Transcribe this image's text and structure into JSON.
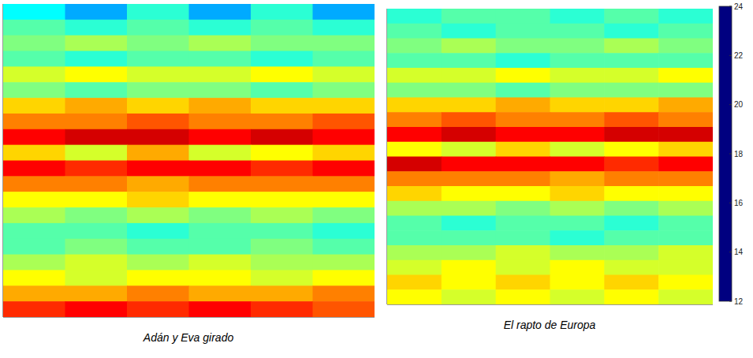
{
  "chart_data": [
    {
      "type": "heatmap",
      "title": "Adán y Eva girado",
      "xlim": [
        0,
        6
      ],
      "ylim": [
        0,
        20
      ],
      "tick_labels": false,
      "cells": [
        [
          16.5,
          15.5,
          17,
          15.5,
          17,
          15.5
        ],
        [
          17.5,
          17,
          17.5,
          17,
          17.5,
          17
        ],
        [
          18,
          18.5,
          18,
          18.5,
          18,
          18
        ],
        [
          17.5,
          17,
          17.5,
          17.5,
          17,
          17.5
        ],
        [
          19,
          19.5,
          19,
          19,
          19.5,
          19
        ],
        [
          18,
          17.5,
          18,
          18,
          17.5,
          18
        ],
        [
          20,
          20.5,
          20,
          20.5,
          20,
          20
        ],
        [
          21,
          21,
          21.5,
          21,
          21,
          21.5
        ],
        [
          22.5,
          23,
          23,
          22.5,
          23,
          22.5
        ],
        [
          20,
          19,
          20.5,
          19,
          19.5,
          20
        ],
        [
          22.5,
          22,
          22.5,
          22.5,
          22,
          22.5
        ],
        [
          21,
          21,
          20.5,
          21,
          21,
          21
        ],
        [
          19.5,
          19.5,
          20,
          19.5,
          19.5,
          19.5
        ],
        [
          18.5,
          18,
          18.5,
          18,
          18.5,
          18
        ],
        [
          17.5,
          17.5,
          17,
          17.5,
          17.5,
          17
        ],
        [
          17.5,
          18,
          17.5,
          17.5,
          18,
          17.5
        ],
        [
          18.5,
          19,
          18.5,
          19,
          18.5,
          18.5
        ],
        [
          19.5,
          19,
          19.5,
          19.5,
          19,
          19.5
        ],
        [
          20.5,
          20.5,
          21,
          20.5,
          20.5,
          21
        ],
        [
          22,
          22.5,
          22,
          22.5,
          22,
          21.5
        ]
      ]
    },
    {
      "type": "heatmap",
      "title": "El rapto de Europa",
      "xlim": [
        0,
        6
      ],
      "ylim": [
        0,
        20
      ],
      "tick_labels": false,
      "cells": [
        [
          17,
          17.5,
          17.5,
          17,
          17.5,
          17
        ],
        [
          17.5,
          17,
          17.5,
          17.5,
          17,
          17.5
        ],
        [
          18,
          18.5,
          18,
          18,
          18.5,
          18
        ],
        [
          17.5,
          17.5,
          17,
          17.5,
          17.5,
          17.5
        ],
        [
          19,
          19,
          19.5,
          19,
          19,
          19.5
        ],
        [
          18,
          18,
          17.5,
          18,
          18,
          18
        ],
        [
          20,
          20,
          20.5,
          20,
          20,
          20.5
        ],
        [
          21,
          21.5,
          21,
          21,
          21.5,
          21
        ],
        [
          22.5,
          23,
          22.5,
          22.5,
          23,
          23
        ],
        [
          19.5,
          19,
          20,
          19,
          19.5,
          20
        ],
        [
          23,
          22.5,
          22.5,
          22.5,
          22,
          22.5
        ],
        [
          21,
          21,
          21,
          20.5,
          21,
          21
        ],
        [
          20,
          19.5,
          19.5,
          20,
          19.5,
          19.5
        ],
        [
          18.5,
          18.5,
          18,
          18.5,
          18,
          18.5
        ],
        [
          17.5,
          17,
          17.5,
          17.5,
          17,
          17.5
        ],
        [
          17.5,
          17.5,
          17.5,
          17,
          17.5,
          17.5
        ],
        [
          18.5,
          18.5,
          19,
          18.5,
          18.5,
          19
        ],
        [
          19,
          19.5,
          19,
          19.5,
          19,
          19
        ],
        [
          20,
          19.5,
          20,
          19.5,
          20,
          19.5
        ],
        [
          19.5,
          19,
          19.5,
          19,
          19.5,
          19
        ]
      ]
    }
  ],
  "colorbar": {
    "range": [
      12,
      24
    ],
    "ticks": [
      12,
      14,
      16,
      18,
      20,
      22,
      24
    ]
  }
}
